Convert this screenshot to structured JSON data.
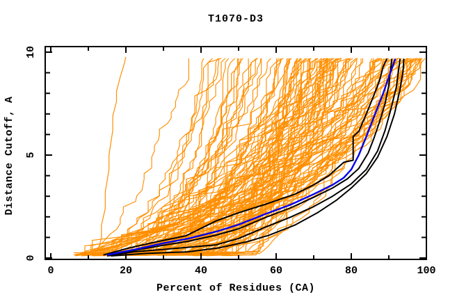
{
  "window": {
    "background": "#ffffff"
  },
  "chart_data": {
    "type": "line",
    "title": "T1070-D3",
    "xlabel": "Percent of Residues (CA)",
    "ylabel": "Distance Cutoff, A",
    "xlim": [
      0,
      100
    ],
    "ylim": [
      0,
      10
    ],
    "grid": "off",
    "legend": "none",
    "x_major_ticks": [
      0,
      20,
      40,
      60,
      80,
      100
    ],
    "x_minor_ticks": [
      10,
      30,
      50,
      70,
      90
    ],
    "x_tick_labels": [
      "0",
      "20",
      "40",
      "60",
      "80",
      "100"
    ],
    "y_major_ticks": [
      0,
      5,
      10
    ],
    "y_minor_ticks": [
      1,
      2,
      3,
      4,
      6,
      7,
      8,
      9
    ],
    "y_tick_labels": [
      "0",
      "5",
      "10"
    ],
    "colors": {
      "ensemble_orange": "#ff8f00",
      "model_black": "#000000",
      "reference_blue": "#0000ee",
      "frame": "#000000",
      "background": "#ffffff"
    },
    "series": [
      {
        "name": "model-black-1",
        "color": "#000000",
        "width": 2,
        "points": [
          [
            14,
            0.15
          ],
          [
            20,
            0.45
          ],
          [
            28,
            0.78
          ],
          [
            36,
            1.08
          ],
          [
            44,
            1.8
          ],
          [
            50,
            2.2
          ],
          [
            57,
            2.6
          ],
          [
            65,
            3.1
          ],
          [
            70,
            3.55
          ],
          [
            74,
            4.0
          ],
          [
            78,
            4.65
          ],
          [
            80.5,
            4.75
          ],
          [
            80.5,
            5.9
          ],
          [
            82,
            6.15
          ],
          [
            84,
            7.0
          ],
          [
            86,
            7.9
          ],
          [
            87.5,
            8.6
          ],
          [
            88.5,
            9.3
          ],
          [
            89.5,
            9.68
          ]
        ]
      },
      {
        "name": "model-black-2",
        "color": "#000000",
        "width": 2,
        "points": [
          [
            15,
            0.13
          ],
          [
            22,
            0.36
          ],
          [
            30,
            0.62
          ],
          [
            36.5,
            0.81
          ],
          [
            44,
            1.11
          ],
          [
            50,
            1.42
          ],
          [
            57,
            1.96
          ],
          [
            64,
            2.45
          ],
          [
            70,
            2.95
          ],
          [
            75,
            3.4
          ],
          [
            79,
            3.85
          ],
          [
            82,
            4.35
          ],
          [
            84.5,
            5.1
          ],
          [
            86,
            5.8
          ],
          [
            87.5,
            6.6
          ],
          [
            89,
            7.5
          ],
          [
            90,
            8.4
          ],
          [
            90.8,
            9.68
          ]
        ]
      },
      {
        "name": "model-black-3",
        "color": "#000000",
        "width": 2,
        "points": [
          [
            15,
            0.1
          ],
          [
            22,
            0.3
          ],
          [
            30,
            0.42
          ],
          [
            36.5,
            0.52
          ],
          [
            44,
            0.64
          ],
          [
            50,
            0.95
          ],
          [
            57,
            1.49
          ],
          [
            64,
            2.0
          ],
          [
            70,
            2.5
          ],
          [
            75,
            3.0
          ],
          [
            80,
            3.6
          ],
          [
            84,
            4.3
          ],
          [
            87,
            5.2
          ],
          [
            89,
            6.2
          ],
          [
            90.5,
            7.2
          ],
          [
            92,
            8.3
          ],
          [
            93,
            9.68
          ]
        ]
      },
      {
        "name": "model-black-4",
        "color": "#000000",
        "width": 2,
        "points": [
          [
            16,
            0.1
          ],
          [
            25,
            0.22
          ],
          [
            36.5,
            0.3
          ],
          [
            45,
            0.5
          ],
          [
            52,
            0.78
          ],
          [
            58,
            1.1
          ],
          [
            65,
            1.6
          ],
          [
            71,
            2.2
          ],
          [
            76,
            2.8
          ],
          [
            80,
            3.4
          ],
          [
            84,
            4.1
          ],
          [
            87,
            4.9
          ],
          [
            89.5,
            5.9
          ],
          [
            91.5,
            7.0
          ],
          [
            93,
            8.2
          ],
          [
            93.8,
            9.1
          ],
          [
            94,
            9.68
          ]
        ]
      },
      {
        "name": "reference-blue",
        "color": "#0000ee",
        "width": 2.4,
        "points": [
          [
            15,
            0.15
          ],
          [
            22,
            0.4
          ],
          [
            30,
            0.72
          ],
          [
            36.5,
            0.94
          ],
          [
            44,
            1.28
          ],
          [
            50,
            1.62
          ],
          [
            57,
            2.13
          ],
          [
            64,
            2.6
          ],
          [
            70,
            3.1
          ],
          [
            75,
            3.55
          ],
          [
            78,
            3.9
          ],
          [
            80,
            4.3
          ],
          [
            82,
            5.0
          ],
          [
            84,
            5.9
          ],
          [
            85.5,
            6.6
          ],
          [
            87,
            7.3
          ],
          [
            88.5,
            8.0
          ],
          [
            90,
            8.8
          ],
          [
            91,
            9.3
          ],
          [
            91.7,
            9.68
          ]
        ]
      },
      {
        "name": "orange-outlier",
        "color": "#ff8f00",
        "width": 1.2,
        "points": [
          [
            12.5,
            0.3
          ],
          [
            13.5,
            1.0
          ],
          [
            13.5,
            1.6
          ],
          [
            14.5,
            2.4
          ],
          [
            14.5,
            3.2
          ],
          [
            15.5,
            4.3
          ],
          [
            15.5,
            5.0
          ],
          [
            16.5,
            6.2
          ],
          [
            16.5,
            6.9
          ],
          [
            17.5,
            7.6
          ],
          [
            17.5,
            8.1
          ],
          [
            18.5,
            8.8
          ],
          [
            19,
            9.1
          ],
          [
            19.5,
            9.4
          ],
          [
            20,
            9.77
          ]
        ]
      }
    ],
    "ensemble": {
      "name": "server-model-curves",
      "color": "#ff8f00",
      "count": 120,
      "seed": 1070,
      "width": 1.15,
      "start_range": [
        6,
        46
      ],
      "run_range": [
        2,
        26
      ],
      "end_range": [
        31,
        100
      ],
      "anchor_vals": [
        1,
        2,
        3,
        4.5,
        6,
        7.5,
        8.6,
        9.7
      ],
      "anchor_fracs": [
        0.18,
        0.33,
        0.47,
        0.62,
        0.76,
        0.87,
        0.94,
        1
      ],
      "top_val": 9.7,
      "bottom_val_range": [
        0.1,
        0.27
      ]
    }
  }
}
